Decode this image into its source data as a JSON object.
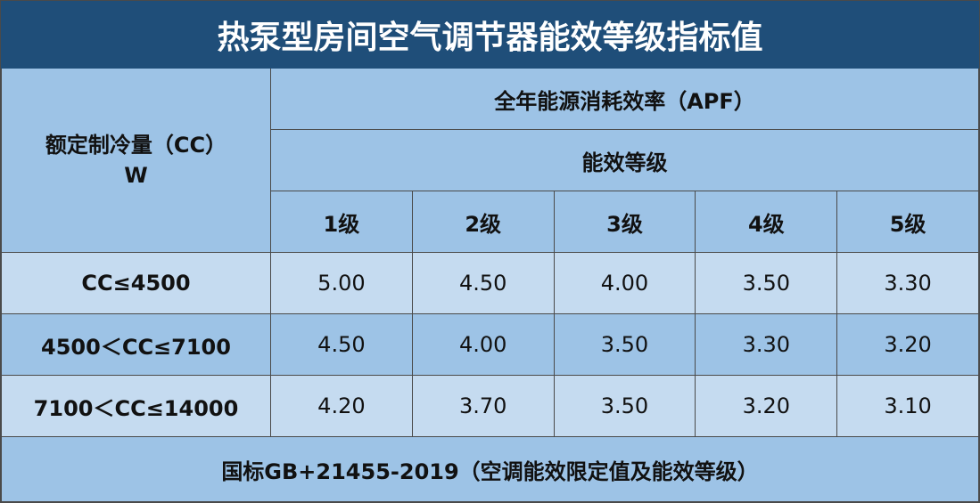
{
  "header": {
    "title": "热泵型房间空气调节器能效等级指标值"
  },
  "table": {
    "row_header": [
      "额定制冷量（CC）",
      "W"
    ],
    "group_header": "全年能源消耗效率（APF）",
    "sub_header": "能效等级",
    "levels": [
      "1级",
      "2级",
      "3级",
      "4级",
      "5级"
    ],
    "rows": [
      [
        "CC≤4500",
        "5.00",
        "4.50",
        "4.00",
        "3.50",
        "3.30"
      ],
      [
        "4500＜CC≤7100",
        "4.50",
        "4.00",
        "3.50",
        "3.30",
        "3.20"
      ],
      [
        "7100＜CC≤14000",
        "4.20",
        "3.70",
        "3.50",
        "3.20",
        "3.10"
      ]
    ]
  },
  "footer": "国标GB+21455-2019（空调能效限定值及能效等级）"
}
